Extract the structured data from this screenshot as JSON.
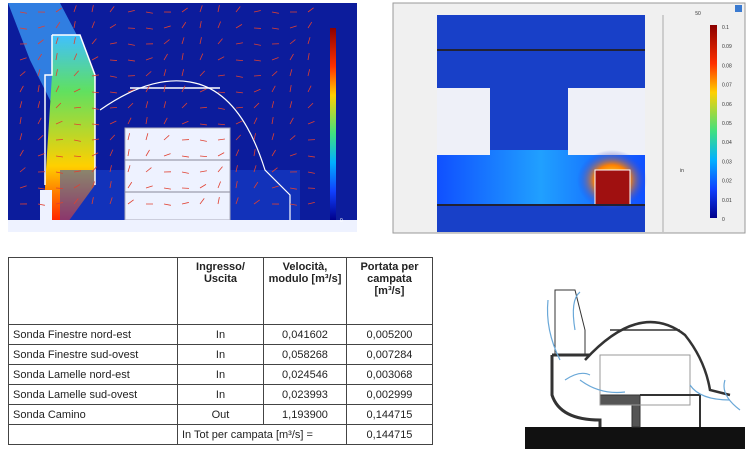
{
  "right_panel": {
    "colorbar_ticks": [
      "0.1",
      "0.09",
      "0.08",
      "0.07",
      "0.06",
      "0.05",
      "0.04",
      "0.03",
      "0.02",
      "0.01",
      "0"
    ],
    "marker": "50",
    "side_label": "in"
  },
  "left_panel": {
    "colorbar_ticks": [
      "0"
    ]
  },
  "table": {
    "headers": [
      "Ingresso/ Uscita",
      "Velocità, modulo [m³/s]",
      "Portata per campata [m³/s]"
    ],
    "rows": [
      [
        "Sonda Finestre nord-est",
        "In",
        "0,041602",
        "0,005200"
      ],
      [
        "Sonda Finestre sud-ovest",
        "In",
        "0,058268",
        "0,007284"
      ],
      [
        "Sonda Lamelle nord-est",
        "In",
        "0,024546",
        "0,003068"
      ],
      [
        "Sonda Lamelle sud-ovest",
        "In",
        "0,023993",
        "0,002999"
      ],
      [
        "Sonda Camino",
        "Out",
        "1,193900",
        "0,144715"
      ]
    ],
    "total": {
      "label": "In Tot per campata [m³/s] =",
      "value": "0,144715"
    }
  }
}
